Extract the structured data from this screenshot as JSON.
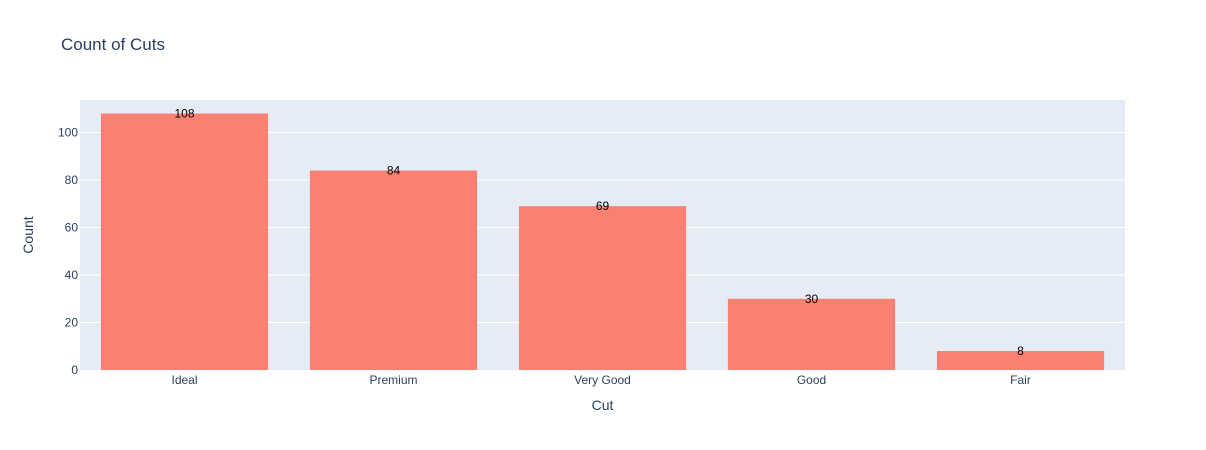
{
  "chart_data": {
    "type": "bar",
    "title": "Count of Cuts",
    "xlabel": "Cut",
    "ylabel": "Count",
    "categories": [
      "Ideal",
      "Premium",
      "Very Good",
      "Good",
      "Fair"
    ],
    "values": [
      108,
      84,
      69,
      30,
      8
    ],
    "data_labels": [
      "108",
      "84",
      "69",
      "30",
      "8"
    ],
    "ylim": [
      0,
      113.7
    ],
    "yticks": [
      0,
      20,
      40,
      60,
      80,
      100
    ],
    "grid": true,
    "legend": "none",
    "colors": {
      "bar": "#fa8072",
      "plot_background": "#e5ecf6",
      "gridline": "#ffffff",
      "text": "#2a3f5f"
    }
  }
}
